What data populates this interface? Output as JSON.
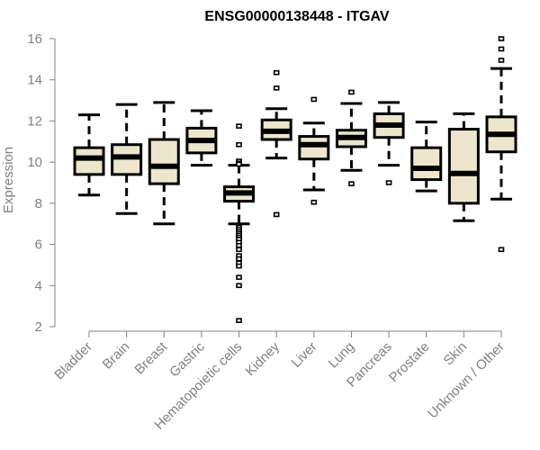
{
  "chart_data": {
    "type": "boxplot",
    "title": "ENSG00000138448 - ITGAV",
    "xlabel": "",
    "ylabel": "Expression",
    "ylim": [
      2,
      16
    ],
    "yticks": [
      "2",
      "4",
      "6",
      "8",
      "10",
      "12",
      "14",
      "16"
    ],
    "ytick_values": [
      2,
      4,
      6,
      8,
      10,
      12,
      14,
      16
    ],
    "grid": false,
    "colors": {
      "box_fill": "#ede6cd",
      "box_stroke": "#000000",
      "axis": "#808080",
      "text": "#808080",
      "title": "#000000"
    },
    "categories": [
      "Bladder",
      "Brain",
      "Breast",
      "Gastric",
      "Hematopoietic cells",
      "Kidney",
      "Liver",
      "Lung",
      "Pancreas",
      "Prostate",
      "Skin",
      "Unknown / Other"
    ],
    "boxes": [
      {
        "name": "Bladder",
        "whisker_low": 8.4,
        "q1": 9.4,
        "median": 10.2,
        "q3": 10.7,
        "whisker_high": 12.3,
        "outliers": []
      },
      {
        "name": "Brain",
        "whisker_low": 7.5,
        "q1": 9.4,
        "median": 10.25,
        "q3": 10.85,
        "whisker_high": 12.8,
        "outliers": []
      },
      {
        "name": "Breast",
        "whisker_low": 7.0,
        "q1": 8.95,
        "median": 9.8,
        "q3": 11.1,
        "whisker_high": 12.9,
        "outliers": []
      },
      {
        "name": "Gastric",
        "whisker_low": 9.85,
        "q1": 10.45,
        "median": 11.05,
        "q3": 11.65,
        "whisker_high": 12.5,
        "outliers": []
      },
      {
        "name": "Hematopoietic cells",
        "whisker_low": 7.0,
        "q1": 8.1,
        "median": 8.5,
        "q3": 8.8,
        "whisker_high": 9.85,
        "outliers": [
          11.75,
          10.85,
          10.05,
          9.95,
          9.9,
          6.85,
          6.75,
          6.65,
          6.55,
          6.45,
          6.35,
          6.25,
          6.1,
          5.95,
          5.75,
          5.45,
          5.3,
          5.1,
          4.95,
          4.4,
          4.0,
          2.3
        ]
      },
      {
        "name": "Kidney",
        "whisker_low": 10.2,
        "q1": 11.1,
        "median": 11.5,
        "q3": 12.05,
        "whisker_high": 12.6,
        "outliers": [
          14.35,
          13.6,
          7.45
        ]
      },
      {
        "name": "Liver",
        "whisker_low": 8.65,
        "q1": 10.15,
        "median": 10.85,
        "q3": 11.25,
        "whisker_high": 11.9,
        "outliers": [
          13.05,
          8.05
        ]
      },
      {
        "name": "Lung",
        "whisker_low": 9.6,
        "q1": 10.75,
        "median": 11.2,
        "q3": 11.55,
        "whisker_high": 12.85,
        "outliers": [
          13.4,
          8.95
        ]
      },
      {
        "name": "Pancreas",
        "whisker_low": 9.85,
        "q1": 11.2,
        "median": 11.8,
        "q3": 12.35,
        "whisker_high": 12.9,
        "outliers": [
          9.0
        ]
      },
      {
        "name": "Prostate",
        "whisker_low": 8.6,
        "q1": 9.15,
        "median": 9.7,
        "q3": 10.7,
        "whisker_high": 11.95,
        "outliers": []
      },
      {
        "name": "Skin",
        "whisker_low": 7.15,
        "q1": 8.0,
        "median": 9.45,
        "q3": 11.6,
        "whisker_high": 12.35,
        "outliers": []
      },
      {
        "name": "Unknown / Other",
        "whisker_low": 8.2,
        "q1": 10.5,
        "median": 11.35,
        "q3": 12.2,
        "whisker_high": 14.55,
        "outliers": [
          16.0,
          15.5,
          14.95,
          5.75
        ]
      }
    ]
  }
}
